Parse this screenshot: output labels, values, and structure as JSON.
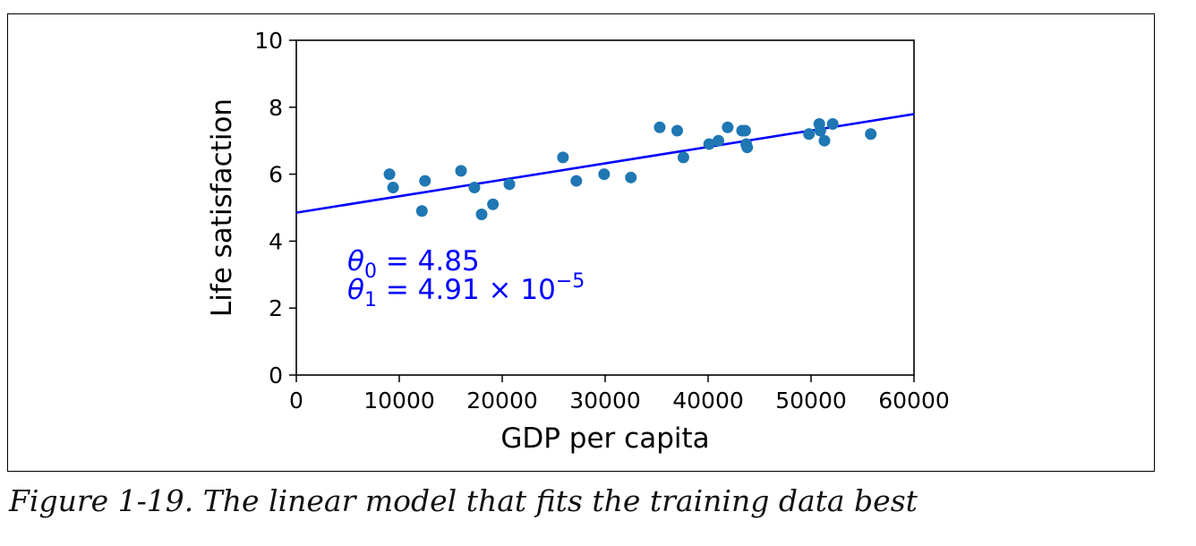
{
  "caption": "Figure 1-19. The linear model that fits the training data best",
  "chart_data": {
    "type": "scatter",
    "xlabel": "GDP per capita",
    "ylabel": "Life satisfaction",
    "xlim": [
      0,
      60000
    ],
    "ylim": [
      0,
      10
    ],
    "x_ticks": [
      "0",
      "10000",
      "20000",
      "30000",
      "40000",
      "50000",
      "60000"
    ],
    "y_ticks": [
      "0",
      "2",
      "4",
      "6",
      "8",
      "10"
    ],
    "grid": false,
    "point_color": "#1f77b4",
    "line_color": "#0000ff",
    "fit_line": {
      "intercept": 4.85,
      "slope": 4.91e-05
    },
    "annotations": {
      "theta0": {
        "symbol": "θ",
        "sub": "0",
        "rest": " = 4.85"
      },
      "theta1": {
        "symbol": "θ",
        "sub": "1",
        "rest": " = 4.91 × 10",
        "sup": "−5"
      }
    },
    "points": [
      [
        9050,
        6.0
      ],
      [
        9400,
        5.6
      ],
      [
        12200,
        4.9
      ],
      [
        12500,
        5.8
      ],
      [
        16000,
        6.1
      ],
      [
        17300,
        5.6
      ],
      [
        18000,
        4.8
      ],
      [
        19100,
        5.1
      ],
      [
        20700,
        5.7
      ],
      [
        25900,
        6.5
      ],
      [
        27200,
        5.8
      ],
      [
        29900,
        6.0
      ],
      [
        32500,
        5.9
      ],
      [
        35300,
        7.4
      ],
      [
        37000,
        7.3
      ],
      [
        37600,
        6.5
      ],
      [
        40100,
        6.9
      ],
      [
        41000,
        7.0
      ],
      [
        41900,
        7.4
      ],
      [
        43300,
        7.3
      ],
      [
        43600,
        7.3
      ],
      [
        43700,
        6.9
      ],
      [
        43800,
        6.8
      ],
      [
        49800,
        7.2
      ],
      [
        50800,
        7.5
      ],
      [
        50900,
        7.3
      ],
      [
        51300,
        7.0
      ],
      [
        52100,
        7.5
      ],
      [
        55800,
        7.2
      ]
    ]
  }
}
